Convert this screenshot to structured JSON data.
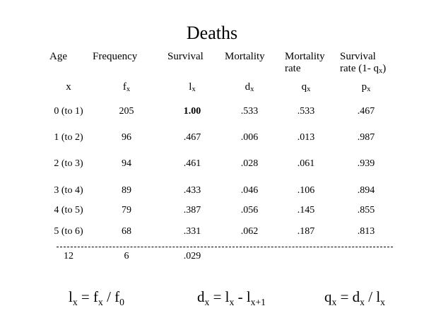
{
  "title": "Deaths",
  "headers": [
    {
      "line1": "Age",
      "line2": "",
      "symbol": "x",
      "sub": ""
    },
    {
      "line1": "Frequency",
      "line2": "",
      "symbol": "f",
      "sub": "x"
    },
    {
      "line1": "Survival",
      "line2": "",
      "symbol": "l",
      "sub": "x"
    },
    {
      "line1": "Mortality",
      "line2": "",
      "symbol": "d",
      "sub": "x"
    },
    {
      "line1": "Mortality",
      "line2": "rate",
      "symbol": "q",
      "sub": "x"
    },
    {
      "line1": "Survival",
      "line2": "rate (1- q",
      "line2_sub": "x",
      "line2_end": ")",
      "symbol": "p",
      "sub": "x"
    }
  ],
  "rows": [
    [
      "0 (to 1)",
      "205",
      "1.00",
      ".533",
      ".533",
      ".467"
    ],
    [
      "1 (to 2)",
      "96",
      ".467",
      ".006",
      ".013",
      ".987"
    ],
    [
      "2 (to 3)",
      "94",
      ".461",
      ".028",
      ".061",
      ".939"
    ],
    [
      "3 (to 4)",
      "89",
      ".433",
      ".046",
      ".106",
      ".894"
    ],
    [
      "4 (to 5)",
      "79",
      ".387",
      ".056",
      ".145",
      ".855"
    ],
    [
      "5 (to 6)",
      "68",
      ".331",
      ".062",
      ".187",
      ".813"
    ]
  ],
  "total_row": [
    "12",
    "6",
    ".029"
  ],
  "formulas": {
    "lx": {
      "a": "l",
      "a_sub": "x",
      "op": " = f",
      "b_sub": "x",
      "op2": " / f",
      "c_sub": "0"
    },
    "dx": {
      "a": "d",
      "a_sub": "x",
      "op": " = l",
      "b_sub": "x",
      "op2": " - l",
      "c_sub": "x+1"
    },
    "qx": {
      "a": "q",
      "a_sub": "x",
      "op": " = d",
      "b_sub": "x",
      "op2": " / l",
      "c_sub": "x"
    }
  }
}
